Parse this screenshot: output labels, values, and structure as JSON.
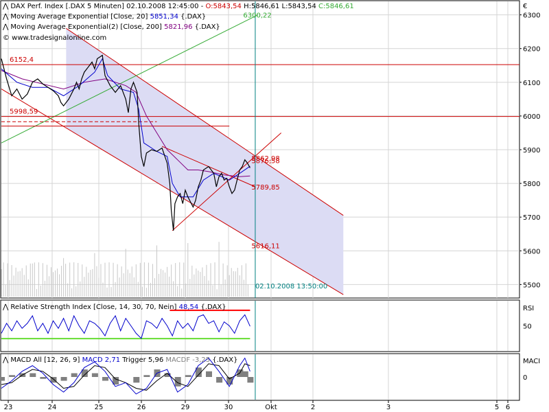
{
  "currency_label": "€",
  "colors": {
    "panel_bg": "#ffffff",
    "border": "#000000",
    "grid": "#d4d4d4",
    "channel_fill": "#dcdcf4",
    "channel_line": "#cc0000",
    "price_line": "#000000",
    "ema20": "#0000cc",
    "ema200": "#800080",
    "trendline_green": "#33aa33",
    "rsi_line": "#0000cc",
    "rsi_upper": "#ff0000",
    "rsi_lower": "#66dd33",
    "macd_line": "#0000cc",
    "macd_trigger": "#000000",
    "macd_hist": "#808080",
    "label_red": "#cc0000",
    "label_green": "#33aa33",
    "label_teal": "#008080"
  },
  "price_panel": {
    "instrument": "DAX Perf. Index [.DAX 5 Minuten] 02.10.2008 12:45:00 - ",
    "ohlc": {
      "open": "O:5843,54",
      "high": " H:5846,61",
      "low": " L:5843,54",
      "close": " C:5846,61"
    },
    "ema20": {
      "label": "Moving Average Exponential [Close, 20]",
      "value": "5851,34",
      "suffix": "{.DAX}"
    },
    "ema200": {
      "label": "Moving Average Exponential(2) [Close, 200]",
      "value": "5821,96",
      "suffix": "{.DAX}"
    },
    "watermark": "© www.tradesignalonline.com",
    "y_ticks": [
      "6300",
      "6200",
      "6100",
      "6000",
      "5900",
      "5800",
      "5700",
      "5600",
      "5500"
    ]
  },
  "rsi_panel": {
    "label": "Relative Strength Index [Close, 14, 30, 70, Nein]",
    "value": "48,54",
    "suffix": "{.DAX}",
    "axis_title": "RSI",
    "y_tick": "50"
  },
  "macd_panel": {
    "label": "MACD All [12, 26, 9]",
    "macd": "MACD 2,71",
    "trigger": "Trigger 5,96",
    "macdf": "MACDF -3,25",
    "suffix": "{.DAX}",
    "axis_title": "MACI",
    "y_tick": "0"
  },
  "x_ticks": [
    "23",
    "24",
    "25",
    "26",
    "29",
    "30",
    "Okt",
    "2",
    "3",
    "5",
    "6"
  ],
  "chart_data": {
    "type": "line",
    "title": "DAX Perf. Index [.DAX 5 Minuten] 02.10.2008 12:45:00",
    "ylabel": "€",
    "ylim": [
      5460,
      6340
    ],
    "x_domain": [
      0,
      1000
    ],
    "price": [
      [
        0,
        6170
      ],
      [
        10,
        6110
      ],
      [
        20,
        6060
      ],
      [
        30,
        6080
      ],
      [
        40,
        6050
      ],
      [
        50,
        6065
      ],
      [
        60,
        6100
      ],
      [
        70,
        6110
      ],
      [
        80,
        6095
      ],
      [
        90,
        6085
      ],
      [
        100,
        6075
      ],
      [
        110,
        6060
      ],
      [
        115,
        6040
      ],
      [
        120,
        6030
      ],
      [
        130,
        6050
      ],
      [
        140,
        6080
      ],
      [
        145,
        6100
      ],
      [
        150,
        6080
      ],
      [
        155,
        6110
      ],
      [
        160,
        6130
      ],
      [
        170,
        6150
      ],
      [
        175,
        6160
      ],
      [
        180,
        6140
      ],
      [
        185,
        6170
      ],
      [
        195,
        6180
      ],
      [
        200,
        6120
      ],
      [
        210,
        6090
      ],
      [
        220,
        6070
      ],
      [
        230,
        6090
      ],
      [
        240,
        6050
      ],
      [
        245,
        6010
      ],
      [
        250,
        6080
      ],
      [
        255,
        6100
      ],
      [
        262,
        6070
      ],
      [
        265,
        5980
      ],
      [
        270,
        5880
      ],
      [
        275,
        5850
      ],
      [
        280,
        5890
      ],
      [
        290,
        5900
      ],
      [
        300,
        5895
      ],
      [
        310,
        5905
      ],
      [
        320,
        5860
      ],
      [
        325,
        5800
      ],
      [
        328,
        5720
      ],
      [
        332,
        5660
      ],
      [
        335,
        5740
      ],
      [
        340,
        5760
      ],
      [
        345,
        5770
      ],
      [
        350,
        5740
      ],
      [
        355,
        5780
      ],
      [
        360,
        5760
      ],
      [
        370,
        5730
      ],
      [
        375,
        5750
      ],
      [
        380,
        5790
      ],
      [
        385,
        5810
      ],
      [
        390,
        5840
      ],
      [
        400,
        5850
      ],
      [
        410,
        5830
      ],
      [
        415,
        5790
      ],
      [
        420,
        5820
      ],
      [
        425,
        5830
      ],
      [
        430,
        5810
      ],
      [
        435,
        5815
      ],
      [
        440,
        5790
      ],
      [
        445,
        5770
      ],
      [
        450,
        5780
      ],
      [
        455,
        5810
      ],
      [
        460,
        5840
      ],
      [
        465,
        5850
      ],
      [
        470,
        5870
      ],
      [
        475,
        5860
      ],
      [
        480,
        5846
      ]
    ],
    "ema20": [
      [
        0,
        6140
      ],
      [
        30,
        6100
      ],
      [
        60,
        6085
      ],
      [
        90,
        6085
      ],
      [
        120,
        6060
      ],
      [
        150,
        6090
      ],
      [
        180,
        6130
      ],
      [
        195,
        6170
      ],
      [
        205,
        6120
      ],
      [
        230,
        6080
      ],
      [
        255,
        6070
      ],
      [
        265,
        6020
      ],
      [
        275,
        5920
      ],
      [
        300,
        5895
      ],
      [
        320,
        5880
      ],
      [
        330,
        5800
      ],
      [
        345,
        5760
      ],
      [
        370,
        5760
      ],
      [
        390,
        5810
      ],
      [
        410,
        5830
      ],
      [
        440,
        5810
      ],
      [
        460,
        5830
      ],
      [
        480,
        5851
      ]
    ],
    "ema200": [
      [
        0,
        6135
      ],
      [
        40,
        6110
      ],
      [
        80,
        6095
      ],
      [
        120,
        6080
      ],
      [
        160,
        6100
      ],
      [
        200,
        6110
      ],
      [
        240,
        6090
      ],
      [
        260,
        6070
      ],
      [
        280,
        6000
      ],
      [
        300,
        5950
      ],
      [
        320,
        5900
      ],
      [
        340,
        5870
      ],
      [
        360,
        5840
      ],
      [
        380,
        5840
      ],
      [
        400,
        5835
      ],
      [
        430,
        5825
      ],
      [
        460,
        5820
      ],
      [
        480,
        5822
      ]
    ],
    "channel_upper": [
      [
        125,
        6260
      ],
      [
        660,
        5705
      ]
    ],
    "channel_lower": [
      [
        0,
        6080
      ],
      [
        660,
        5470
      ]
    ],
    "horizontal_levels": [
      {
        "value": 6152.4,
        "label": "6152,4"
      },
      {
        "value": 5998.59,
        "label": "5998,59"
      },
      {
        "value": 5970,
        "label": ""
      }
    ],
    "annotations": [
      {
        "x": 480,
        "y": 5862.98,
        "label": "5862,98"
      },
      {
        "x": 480,
        "y": 5876.58,
        "label": "5876,58"
      },
      {
        "x": 480,
        "y": 5789.85,
        "label": "5789,85"
      },
      {
        "x": 480,
        "y": 5616.11,
        "label": "5616,11"
      },
      {
        "x": 480,
        "y": 6300.22,
        "label": "6300,22"
      },
      {
        "x": 490,
        "y": 5480,
        "label": "02.10.2008 13:50:00"
      }
    ],
    "rsi": {
      "ylim": [
        0,
        100
      ],
      "upper": 70,
      "lower": 30,
      "values": [
        [
          0,
          35
        ],
        [
          10,
          55
        ],
        [
          20,
          40
        ],
        [
          30,
          60
        ],
        [
          40,
          45
        ],
        [
          50,
          55
        ],
        [
          60,
          70
        ],
        [
          70,
          40
        ],
        [
          80,
          55
        ],
        [
          90,
          35
        ],
        [
          100,
          60
        ],
        [
          110,
          45
        ],
        [
          120,
          65
        ],
        [
          130,
          40
        ],
        [
          140,
          70
        ],
        [
          150,
          50
        ],
        [
          160,
          35
        ],
        [
          170,
          60
        ],
        [
          180,
          55
        ],
        [
          190,
          45
        ],
        [
          200,
          30
        ],
        [
          210,
          55
        ],
        [
          220,
          70
        ],
        [
          230,
          40
        ],
        [
          240,
          65
        ],
        [
          250,
          50
        ],
        [
          260,
          35
        ],
        [
          270,
          25
        ],
        [
          280,
          60
        ],
        [
          290,
          55
        ],
        [
          300,
          45
        ],
        [
          310,
          65
        ],
        [
          320,
          50
        ],
        [
          330,
          30
        ],
        [
          340,
          60
        ],
        [
          350,
          45
        ],
        [
          360,
          55
        ],
        [
          370,
          40
        ],
        [
          380,
          68
        ],
        [
          390,
          72
        ],
        [
          400,
          55
        ],
        [
          410,
          60
        ],
        [
          420,
          38
        ],
        [
          430,
          58
        ],
        [
          440,
          50
        ],
        [
          450,
          35
        ],
        [
          460,
          60
        ],
        [
          470,
          72
        ],
        [
          480,
          49
        ]
      ]
    },
    "macd": {
      "ylim": [
        -12,
        12
      ],
      "macd": [
        [
          0,
          -6
        ],
        [
          20,
          -2
        ],
        [
          40,
          3
        ],
        [
          60,
          6
        ],
        [
          80,
          2
        ],
        [
          100,
          -4
        ],
        [
          120,
          -8
        ],
        [
          140,
          -3
        ],
        [
          160,
          5
        ],
        [
          180,
          8
        ],
        [
          200,
          3
        ],
        [
          220,
          -5
        ],
        [
          240,
          -3
        ],
        [
          260,
          -9
        ],
        [
          280,
          -6
        ],
        [
          300,
          2
        ],
        [
          320,
          4
        ],
        [
          340,
          -8
        ],
        [
          360,
          -4
        ],
        [
          380,
          6
        ],
        [
          400,
          10
        ],
        [
          420,
          3
        ],
        [
          440,
          -5
        ],
        [
          460,
          6
        ],
        [
          470,
          10
        ],
        [
          480,
          3
        ]
      ],
      "trigger": [
        [
          0,
          -4
        ],
        [
          20,
          -3
        ],
        [
          40,
          1
        ],
        [
          60,
          4
        ],
        [
          80,
          3
        ],
        [
          100,
          -1
        ],
        [
          120,
          -6
        ],
        [
          140,
          -5
        ],
        [
          160,
          1
        ],
        [
          180,
          6
        ],
        [
          200,
          5
        ],
        [
          220,
          -1
        ],
        [
          240,
          -3
        ],
        [
          260,
          -6
        ],
        [
          280,
          -7
        ],
        [
          300,
          -2
        ],
        [
          320,
          2
        ],
        [
          340,
          -3
        ],
        [
          360,
          -5
        ],
        [
          380,
          1
        ],
        [
          400,
          7
        ],
        [
          420,
          6
        ],
        [
          440,
          -1
        ],
        [
          460,
          2
        ],
        [
          470,
          7
        ],
        [
          480,
          6
        ]
      ],
      "hist": [
        [
          0,
          -2
        ],
        [
          20,
          1
        ],
        [
          40,
          2
        ],
        [
          60,
          2
        ],
        [
          80,
          -1
        ],
        [
          100,
          -3
        ],
        [
          120,
          -2
        ],
        [
          140,
          2
        ],
        [
          160,
          4
        ],
        [
          180,
          2
        ],
        [
          200,
          -2
        ],
        [
          220,
          -4
        ],
        [
          240,
          0
        ],
        [
          260,
          -3
        ],
        [
          280,
          1
        ],
        [
          300,
          4
        ],
        [
          320,
          2
        ],
        [
          340,
          -5
        ],
        [
          360,
          1
        ],
        [
          380,
          5
        ],
        [
          400,
          3
        ],
        [
          420,
          -3
        ],
        [
          440,
          -4
        ],
        [
          460,
          4
        ],
        [
          470,
          3
        ],
        [
          480,
          -3
        ]
      ]
    }
  }
}
